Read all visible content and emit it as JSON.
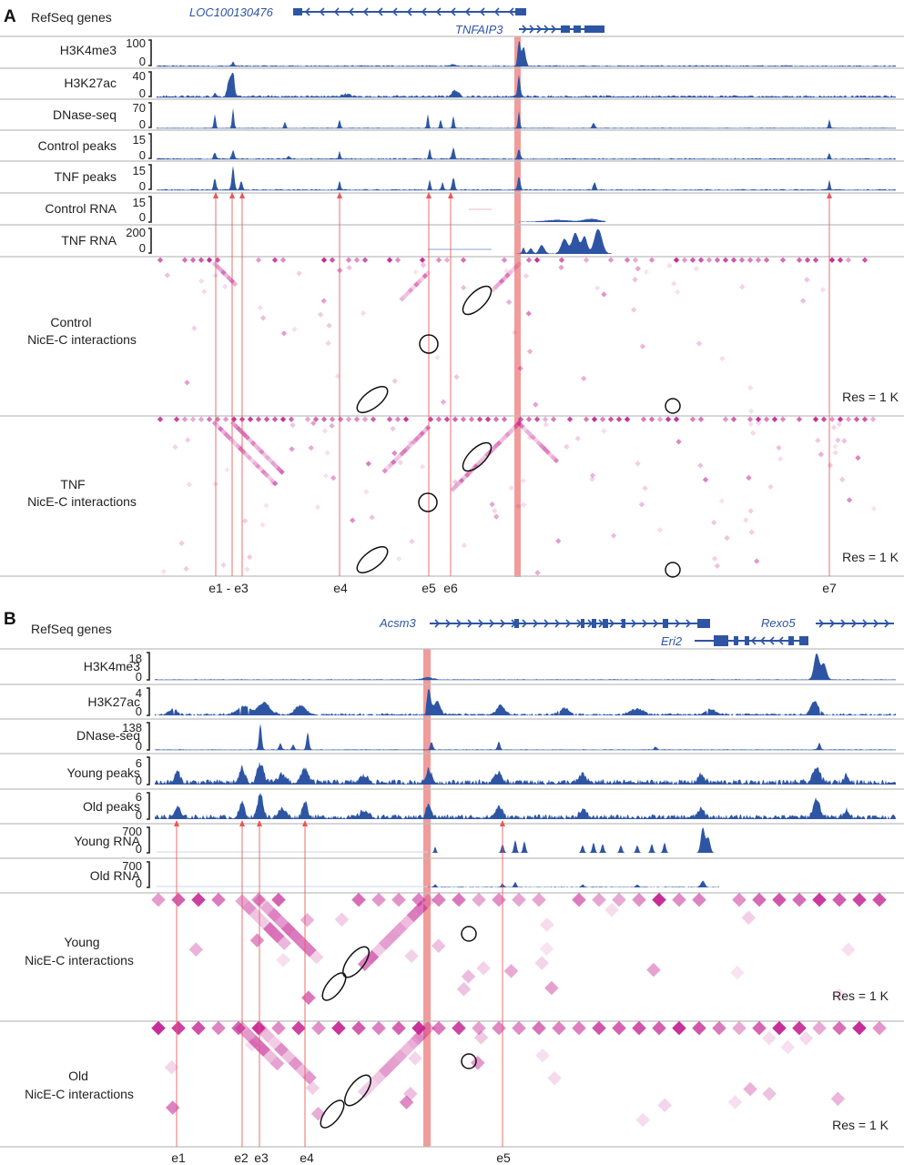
{
  "colors": {
    "track": "#2e55a4",
    "highlight": "#f08a8a",
    "guide": "#ec5656",
    "interaction": "#c21d8f",
    "separator": "#bdbdbd"
  },
  "panels": [
    {
      "letter": "A",
      "genes_label": "RefSeq genes",
      "genes": [
        {
          "name": "LOC100130476",
          "strand": "-"
        },
        {
          "name": "TNFAIP3",
          "strand": "+"
        }
      ],
      "tracks": [
        {
          "label": "H3K4me3",
          "max": "100",
          "min": "0"
        },
        {
          "label": "H3K27ac",
          "max": "40",
          "min": "0"
        },
        {
          "label": "DNase-seq",
          "max": "70",
          "min": "0"
        },
        {
          "label": "Control peaks",
          "max": "15",
          "min": "0"
        },
        {
          "label": "TNF peaks",
          "max": "15",
          "min": "0"
        },
        {
          "label": "Control RNA",
          "max": "15",
          "min": "0"
        },
        {
          "label": "TNF RNA",
          "max": "200",
          "min": "0"
        }
      ],
      "interactions": [
        {
          "label_line1": "Control",
          "label_line2": "NicE-C interactions",
          "resolution": "Res = 1 K"
        },
        {
          "label_line1": "TNF",
          "label_line2": "NicE-C interactions",
          "resolution": "Res = 1 K"
        }
      ],
      "elements": [
        "e1 - e3",
        "e4",
        "e5",
        "e6",
        "e7"
      ]
    },
    {
      "letter": "B",
      "genes_label": "RefSeq genes",
      "genes": [
        {
          "name": "Acsm3",
          "strand": "+"
        },
        {
          "name": "Rexo5",
          "strand": "+"
        },
        {
          "name": "Eri2",
          "strand": "-"
        }
      ],
      "tracks": [
        {
          "label": "H3K4me3",
          "max": "18",
          "min": "0"
        },
        {
          "label": "H3K27ac",
          "max": "4",
          "min": "0"
        },
        {
          "label": "DNase-seq",
          "max": "138",
          "min": "0"
        },
        {
          "label": "Young peaks",
          "max": "6",
          "min": "0"
        },
        {
          "label": "Old peaks",
          "max": "6",
          "min": "0"
        },
        {
          "label": "Young RNA",
          "max": "700",
          "min": "0"
        },
        {
          "label": "Old RNA",
          "max": "700",
          "min": "0"
        }
      ],
      "interactions": [
        {
          "label_line1": "Young",
          "label_line2": "NicE-C interactions",
          "resolution": "Res = 1 K"
        },
        {
          "label_line1": "Old",
          "label_line2": "NicE-C interactions",
          "resolution": "Res = 1 K"
        }
      ],
      "elements": [
        "e1",
        "e2",
        "e3",
        "e4",
        "e5"
      ]
    }
  ]
}
